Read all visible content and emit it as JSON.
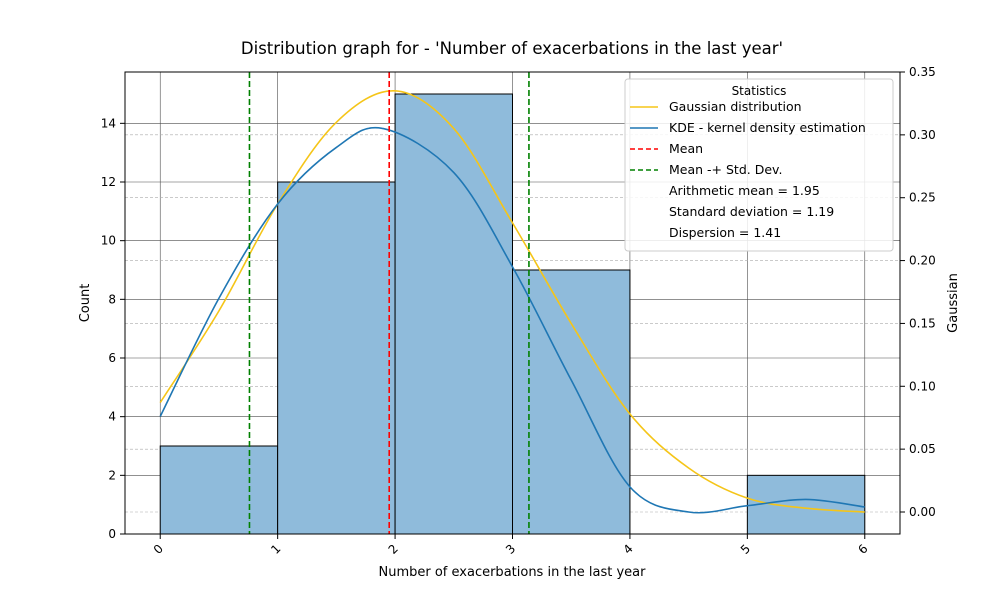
{
  "chart_data": {
    "type": "bar",
    "title": "Distribution graph for - 'Number of exacerbations in the last year'",
    "xlabel": "Number of exacerbations in the last year",
    "ylabel": "Count",
    "y2label": "Gaussian",
    "xlim": [
      -0.3,
      6.3
    ],
    "ylim": [
      0,
      15.75
    ],
    "y2lim": [
      -0.0175,
      0.35
    ],
    "xticks": [
      "0",
      "1",
      "2",
      "3",
      "4",
      "5",
      "6"
    ],
    "yticks": [
      "0",
      "2",
      "4",
      "6",
      "8",
      "10",
      "12",
      "14"
    ],
    "y2ticks": [
      "0.00",
      "0.05",
      "0.10",
      "0.15",
      "0.20",
      "0.25",
      "0.30",
      "0.35"
    ],
    "grid": true,
    "bins": [
      {
        "from": 0,
        "to": 1,
        "count": 3
      },
      {
        "from": 1,
        "to": 2,
        "count": 12
      },
      {
        "from": 2,
        "to": 3,
        "count": 15
      },
      {
        "from": 3,
        "to": 4,
        "count": 9
      },
      {
        "from": 4,
        "to": 5,
        "count": 0
      },
      {
        "from": 5,
        "to": 6,
        "count": 2
      }
    ],
    "series": [
      {
        "name": "Gaussian distribution",
        "color": "#f5c518",
        "x": [
          0,
          0.5,
          1,
          1.5,
          2,
          2.5,
          3,
          3.5,
          4,
          4.5,
          5,
          5.5,
          6
        ],
        "y": [
          0.087,
          0.16,
          0.245,
          0.31,
          0.335,
          0.305,
          0.23,
          0.15,
          0.078,
          0.035,
          0.011,
          0.003,
          0.0
        ]
      },
      {
        "name": "KDE - kernel density estimation",
        "color": "#1f77b4",
        "x": [
          0,
          0.5,
          1,
          1.5,
          1.9,
          2.5,
          3,
          3.5,
          4,
          4.5,
          5,
          5.5,
          6
        ],
        "y": [
          0.076,
          0.17,
          0.245,
          0.29,
          0.305,
          0.27,
          0.195,
          0.105,
          0.02,
          0.0,
          0.005,
          0.01,
          0.004
        ]
      }
    ],
    "mean": 1.95,
    "std": 1.19,
    "lines": [
      {
        "name": "Mean",
        "color": "#ff0000",
        "x": [
          1.95
        ]
      },
      {
        "name": "Mean -+ Std. Dev.",
        "color": "#008000",
        "x": [
          0.76,
          3.14
        ]
      }
    ],
    "legend": {
      "title": "Statistics",
      "placement": "top-right",
      "entries": [
        {
          "label": "Gaussian distribution",
          "style": "solid",
          "color": "#f5c518"
        },
        {
          "label": "KDE - kernel density estimation",
          "style": "solid",
          "color": "#1f77b4"
        },
        {
          "label": "Mean",
          "style": "dashed",
          "color": "#ff0000"
        },
        {
          "label": "Mean -+ Std. Dev.",
          "style": "dashed",
          "color": "#008000"
        },
        {
          "label": "Arithmetic mean = 1.95",
          "style": "none",
          "color": ""
        },
        {
          "label": "Standard deviation = 1.19",
          "style": "none",
          "color": ""
        },
        {
          "label": "Dispersion = 1.41",
          "style": "none",
          "color": ""
        }
      ]
    },
    "bar_color": "#8fbbdb"
  }
}
